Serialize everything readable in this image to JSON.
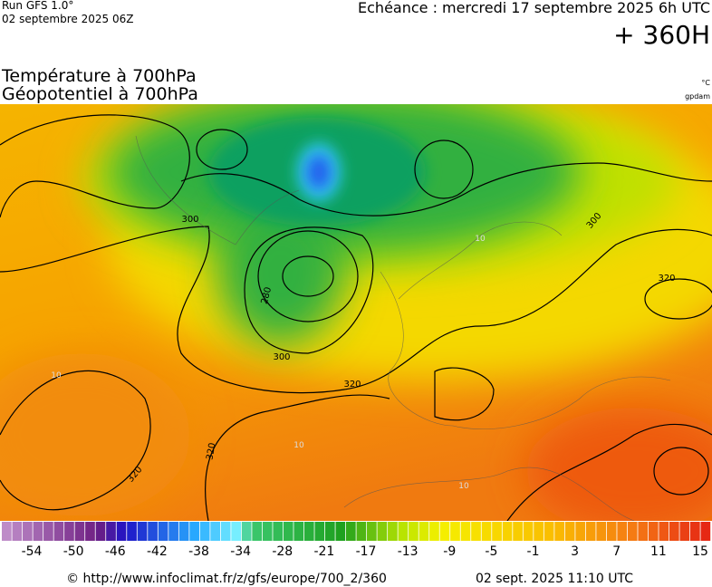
{
  "header": {
    "run": "Run GFS 1.0°",
    "run_date": "02 septembre 2025 06Z",
    "valid": "Echéance : mercredi 17 septembre 2025 6h UTC",
    "lead": "+ 360H"
  },
  "titles": [
    "Température à 700hPa",
    "Géopotentiel à 700hPa"
  ],
  "units": [
    "°C",
    "gpdam"
  ],
  "contour_labels": [
    "300",
    "280",
    "300",
    "320",
    "320",
    "320",
    "300",
    "320",
    "10",
    "10",
    "10",
    "10"
  ],
  "colorbar": {
    "labels": [
      -54,
      -50,
      -46,
      -42,
      -38,
      -34,
      -28,
      -21,
      -17,
      -13,
      -9,
      -5,
      -1,
      3,
      7,
      11,
      15
    ]
  },
  "footer": {
    "url": "© http://www.infoclimat.fr/z/gfs/europe/700_2/360",
    "timestamp": "02 sept. 2025 11:10 UTC"
  }
}
